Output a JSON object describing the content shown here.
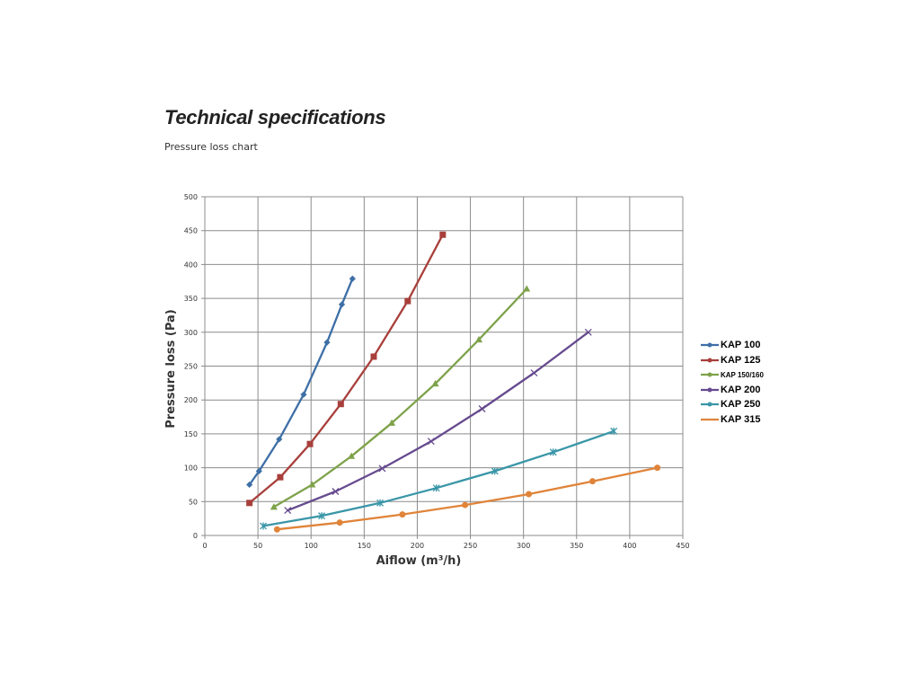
{
  "page": {
    "title": "Technical specifications",
    "subtitle": "Pressure loss chart"
  },
  "chart_data": {
    "type": "line",
    "title": "",
    "xlabel": "Aiflow (m³/h)",
    "ylabel": "Pressure loss (Pa)",
    "xlim": [
      0,
      450
    ],
    "ylim": [
      0,
      500
    ],
    "xticks": [
      0,
      50,
      100,
      150,
      200,
      250,
      300,
      350,
      400,
      450
    ],
    "yticks": [
      0,
      50,
      100,
      150,
      200,
      250,
      300,
      350,
      400,
      450,
      500
    ],
    "grid": true,
    "legend_position": "right",
    "series": [
      {
        "name": "KAP 100",
        "color": "#3e6fa6",
        "marker": "diamond",
        "x": [
          42,
          51,
          70,
          93,
          115,
          129,
          139
        ],
        "y": [
          75,
          95,
          142,
          208,
          285,
          341,
          379
        ]
      },
      {
        "name": "KAP 125",
        "color": "#a83f3b",
        "marker": "square",
        "x": [
          42,
          71,
          99,
          128,
          159,
          191,
          224
        ],
        "y": [
          48,
          86,
          135,
          194,
          264,
          346,
          444
        ]
      },
      {
        "name": "KAP 150/160",
        "color": "#7ea24a",
        "marker": "triangle",
        "x": [
          65,
          101,
          138,
          176,
          217,
          258,
          303
        ],
        "y": [
          42,
          75,
          117,
          166,
          224,
          289,
          364
        ]
      },
      {
        "name": "KAP 200",
        "color": "#664a8f",
        "marker": "x",
        "x": [
          78,
          123,
          167,
          213,
          261,
          310,
          361
        ],
        "y": [
          37,
          65,
          99,
          139,
          187,
          240,
          300
        ]
      },
      {
        "name": "KAP 250",
        "color": "#3a96a8",
        "marker": "asterisk",
        "x": [
          55,
          110,
          165,
          218,
          273,
          328,
          385
        ],
        "y": [
          14,
          29,
          48,
          70,
          95,
          123,
          154
        ]
      },
      {
        "name": "KAP 315",
        "color": "#e0843a",
        "marker": "circle",
        "x": [
          68,
          127,
          186,
          245,
          305,
          365,
          426
        ],
        "y": [
          9,
          19,
          31,
          45,
          61,
          80,
          100
        ]
      }
    ]
  }
}
